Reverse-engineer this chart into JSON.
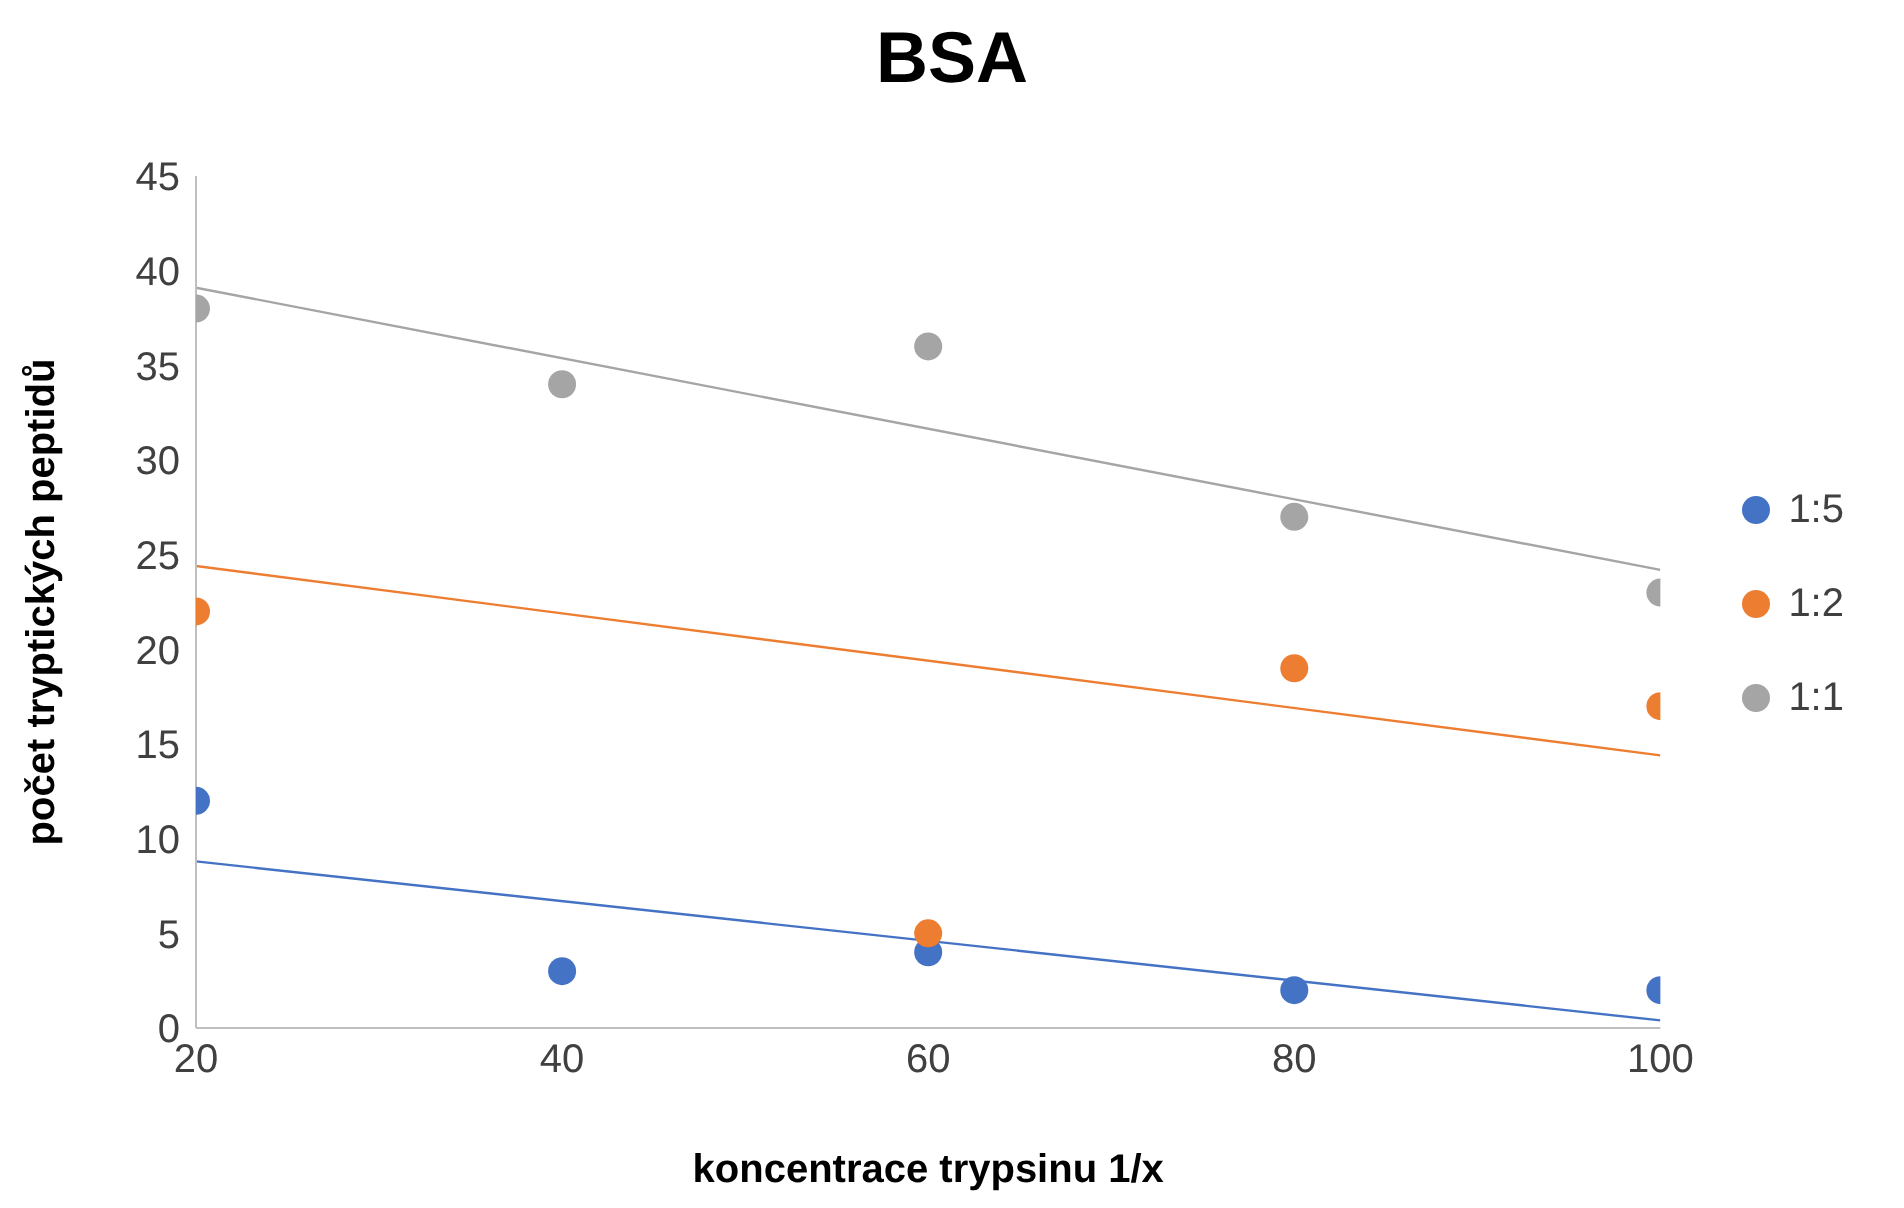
{
  "chart_data": {
    "type": "scatter",
    "title": "BSA",
    "xlabel": "koncentrace trypsinu 1/x",
    "ylabel": "počet tryptických peptidů",
    "xlim": [
      20,
      100
    ],
    "xticks": [
      20,
      40,
      60,
      80,
      100
    ],
    "ylim": [
      0,
      45
    ],
    "yticks": [
      0,
      5,
      10,
      15,
      20,
      25,
      30,
      35,
      40,
      45
    ],
    "grid": false,
    "legend": "right",
    "marker": "circle",
    "series": [
      {
        "name": "1:5",
        "color": "#4472c4",
        "x": [
          20,
          40,
          60,
          80,
          100
        ],
        "values": [
          12,
          3,
          4,
          2,
          2
        ]
      },
      {
        "name": "1:2",
        "color": "#ed7d31",
        "x": [
          20,
          60,
          80,
          100
        ],
        "values": [
          22,
          5,
          19,
          17
        ]
      },
      {
        "name": "1:1",
        "color": "#a5a5a5",
        "x": [
          20,
          40,
          60,
          80,
          100
        ],
        "values": [
          38,
          34,
          36,
          27,
          23
        ]
      },
      {
        "type": "line",
        "color": "#4472c4",
        "x": [
          20,
          100
        ],
        "values": [
          8.8,
          0.4
        ],
        "marker": "none"
      },
      {
        "type": "line",
        "color": "#ed7d31",
        "x": [
          20,
          100
        ],
        "values": [
          24.4,
          14.4
        ],
        "marker": "none"
      },
      {
        "type": "line",
        "color": "#a5a5a5",
        "x": [
          20,
          100
        ],
        "values": [
          39.1,
          24.2
        ],
        "marker": "none"
      }
    ]
  }
}
